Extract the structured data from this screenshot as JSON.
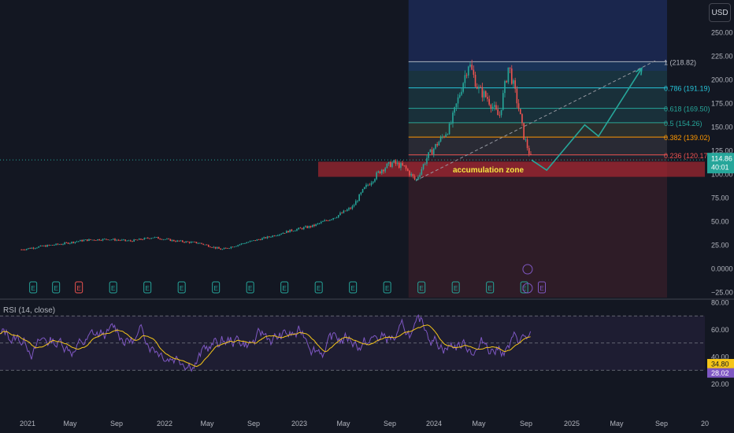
{
  "currency": "USD",
  "price_axis": {
    "ticks": [
      "250.00",
      "225.00",
      "200.00",
      "175.00",
      "150.00",
      "125.00",
      "100.00",
      "75.00",
      "50.00",
      "25.00",
      "0.0000",
      "−25.00"
    ],
    "last_price": "114.86",
    "countdown": "40:01"
  },
  "rsi_axis": {
    "ticks": [
      "80.00",
      "60.00",
      "40.00",
      "20.00"
    ],
    "values": [
      "34.80",
      "28.02"
    ]
  },
  "time_axis": [
    "2021",
    "May",
    "Sep",
    "2022",
    "May",
    "Sep",
    "2023",
    "May",
    "Sep",
    "2024",
    "May",
    "Sep",
    "2025",
    "May",
    "Sep",
    "20"
  ],
  "rsi_label": "RSI (14, close)",
  "annotation": "accumulation zone",
  "colors": {
    "background": "#131722",
    "up": "#26a69a",
    "down": "#ef5350",
    "rsi_line": "#7e57c2",
    "rsi_ma": "#f5c518",
    "projection": "#26a69a"
  },
  "chart_data": [
    {
      "type": "line",
      "name": "price",
      "x_range": [
        "2020-12",
        "2025-12"
      ],
      "ylim": [
        -25,
        260
      ],
      "points": [
        [
          "2020-12-15",
          20
        ],
        [
          "2021-02-01",
          23
        ],
        [
          "2021-04-01",
          26
        ],
        [
          "2021-06-01",
          30
        ],
        [
          "2021-08-01",
          31
        ],
        [
          "2021-10-01",
          29
        ],
        [
          "2021-12-01",
          33
        ],
        [
          "2022-02-01",
          29
        ],
        [
          "2022-04-01",
          27
        ],
        [
          "2022-06-01",
          20
        ],
        [
          "2022-08-01",
          27
        ],
        [
          "2022-10-01",
          33
        ],
        [
          "2022-12-01",
          40
        ],
        [
          "2023-02-01",
          45
        ],
        [
          "2023-04-01",
          55
        ],
        [
          "2023-05-15",
          65
        ],
        [
          "2023-06-15",
          84
        ],
        [
          "2023-08-01",
          105
        ],
        [
          "2023-09-01",
          112
        ],
        [
          "2023-10-01",
          107
        ],
        [
          "2023-11-01",
          93
        ],
        [
          "2023-12-01",
          118
        ],
        [
          "2024-02-01",
          150
        ],
        [
          "2024-03-20",
          218
        ],
        [
          "2024-04-15",
          190
        ],
        [
          "2024-05-10",
          180
        ],
        [
          "2024-06-10",
          160
        ],
        [
          "2024-07-05",
          215
        ],
        [
          "2024-08-01",
          170
        ],
        [
          "2024-08-15",
          140
        ],
        [
          "2024-09-05",
          114.86
        ]
      ],
      "fibonacci": [
        {
          "label": "1 (218.82)",
          "value": 218.82
        },
        {
          "label": "0.786 (191.19)",
          "value": 191.19
        },
        {
          "label": "0.618 (169.50)",
          "value": 169.5
        },
        {
          "label": "0.5 (154.26)",
          "value": 154.26
        },
        {
          "label": "0.382 (139.02)",
          "value": 139.02
        },
        {
          "label": "0.236 (120.17)",
          "value": 120.17
        }
      ],
      "zone": {
        "label": "accumulation zone",
        "from": 97,
        "to": 113
      },
      "projection": [
        [
          "2024-09-05",
          114.86
        ],
        [
          "2024-10-15",
          104
        ],
        [
          "2025-01-25",
          152
        ],
        [
          "2025-03-01",
          140
        ],
        [
          "2025-06-25",
          212
        ]
      ],
      "trendline": [
        [
          "2023-11-01",
          93
        ],
        [
          "2025-08-01",
          220
        ]
      ],
      "earnings_markers": [
        "2021-01",
        "2021-03",
        "2021-05",
        "2021-08",
        "2021-11",
        "2022-02",
        "2022-05",
        "2022-08",
        "2022-11",
        "2023-02",
        "2023-05",
        "2023-08",
        "2023-11",
        "2024-02",
        "2024-05",
        "2024-08"
      ]
    },
    {
      "type": "line",
      "name": "RSI (14, close)",
      "ylim": [
        15,
        92
      ],
      "bands": [
        30,
        50,
        70
      ],
      "last_values": [
        34.8,
        28.02
      ]
    }
  ]
}
